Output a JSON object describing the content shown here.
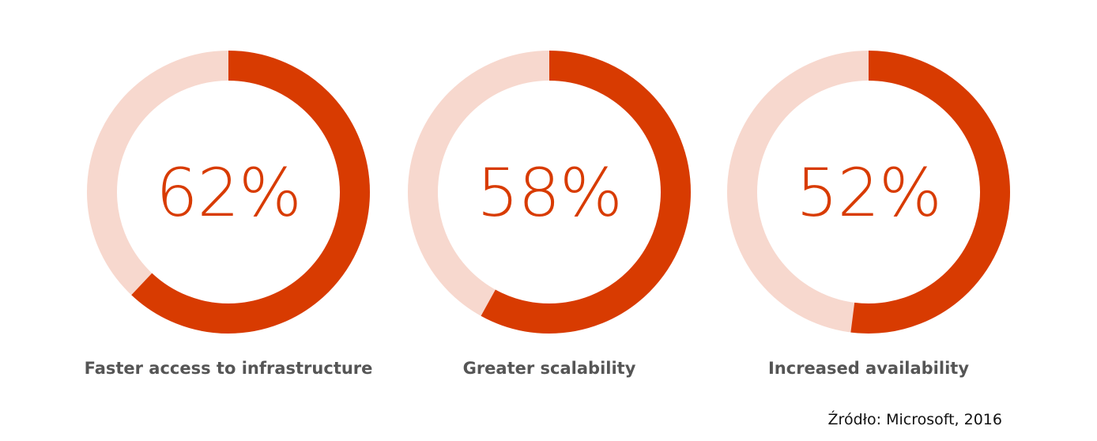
{
  "chart_data": {
    "type": "pie",
    "subtype": "donut",
    "categories": [
      "Faster access to infrastructure",
      "Greater scalability",
      "Increased availability"
    ],
    "values": [
      62,
      58,
      52
    ],
    "value_labels": [
      "62%",
      "58%",
      "52%"
    ],
    "unit": "%",
    "max": 100,
    "colors": {
      "filled": "#d83b01",
      "track": "#f7d8ce",
      "label_text": "#555555"
    },
    "source": "Źródło: Microsoft, 2016"
  }
}
